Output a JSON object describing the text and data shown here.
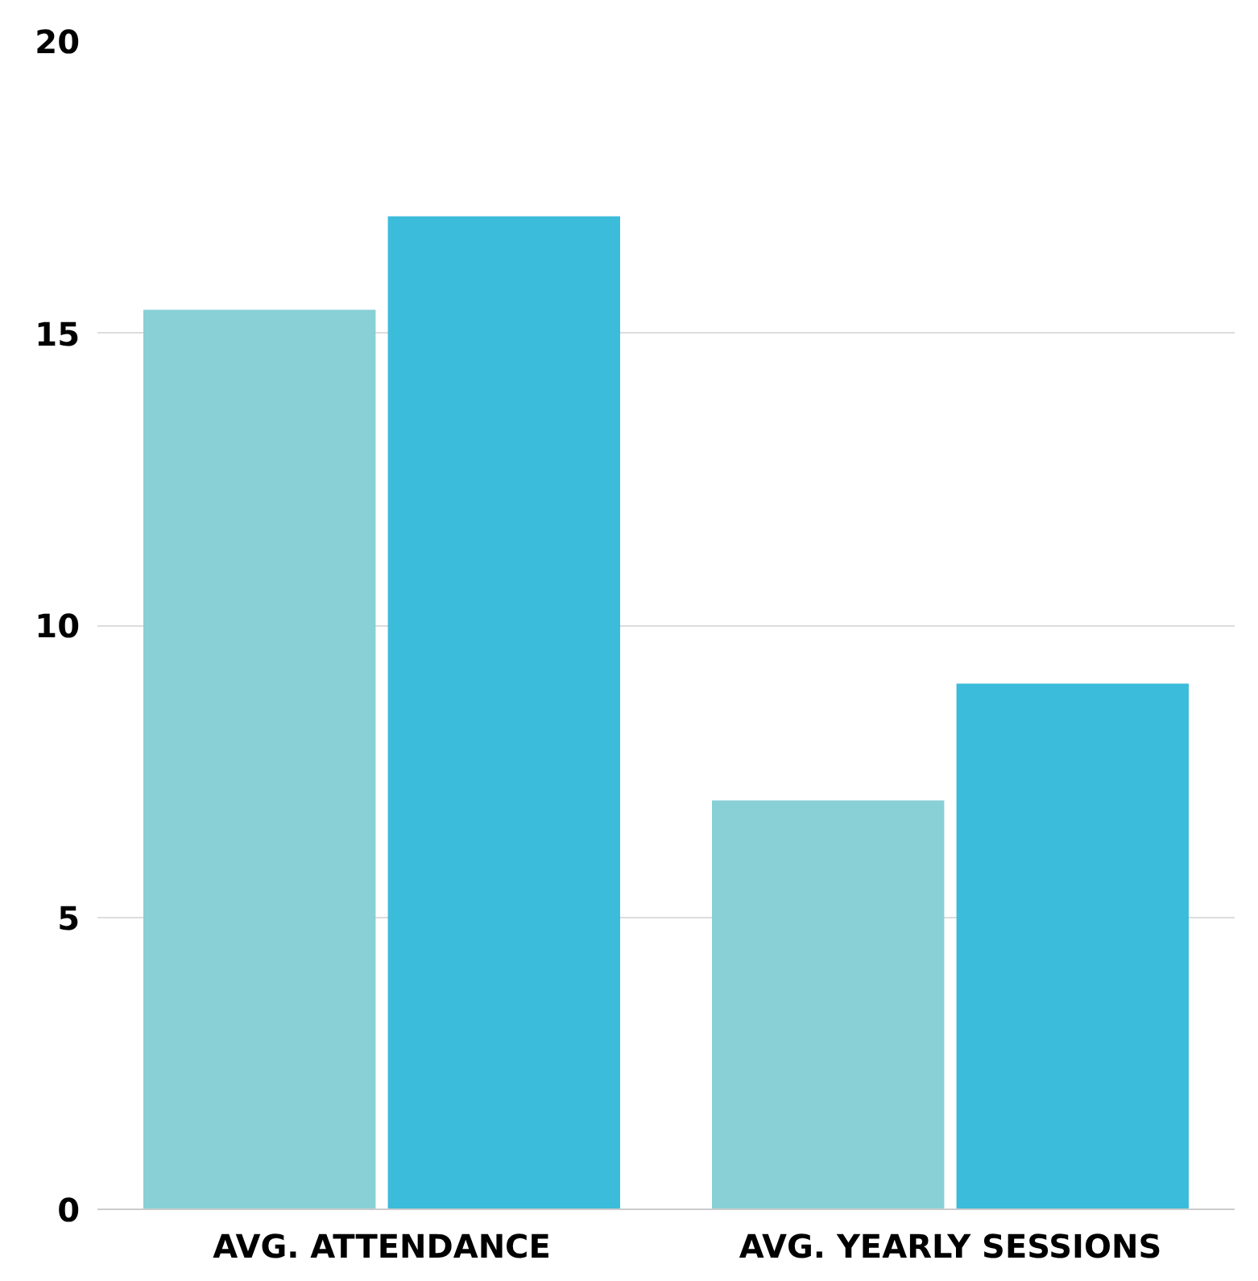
{
  "chart_data": {
    "type": "bar",
    "categories": [
      "AVG. ATTENDANCE",
      "AVG. YEARLY SESSIONS"
    ],
    "series": [
      {
        "color": "#88d0d6",
        "values": [
          15.4,
          7
        ]
      },
      {
        "color": "#3cbcdb",
        "values": [
          17,
          9
        ]
      }
    ],
    "ylim": [
      0,
      20
    ],
    "yticks": [
      0,
      5,
      10,
      15,
      20
    ],
    "grid": "y"
  }
}
